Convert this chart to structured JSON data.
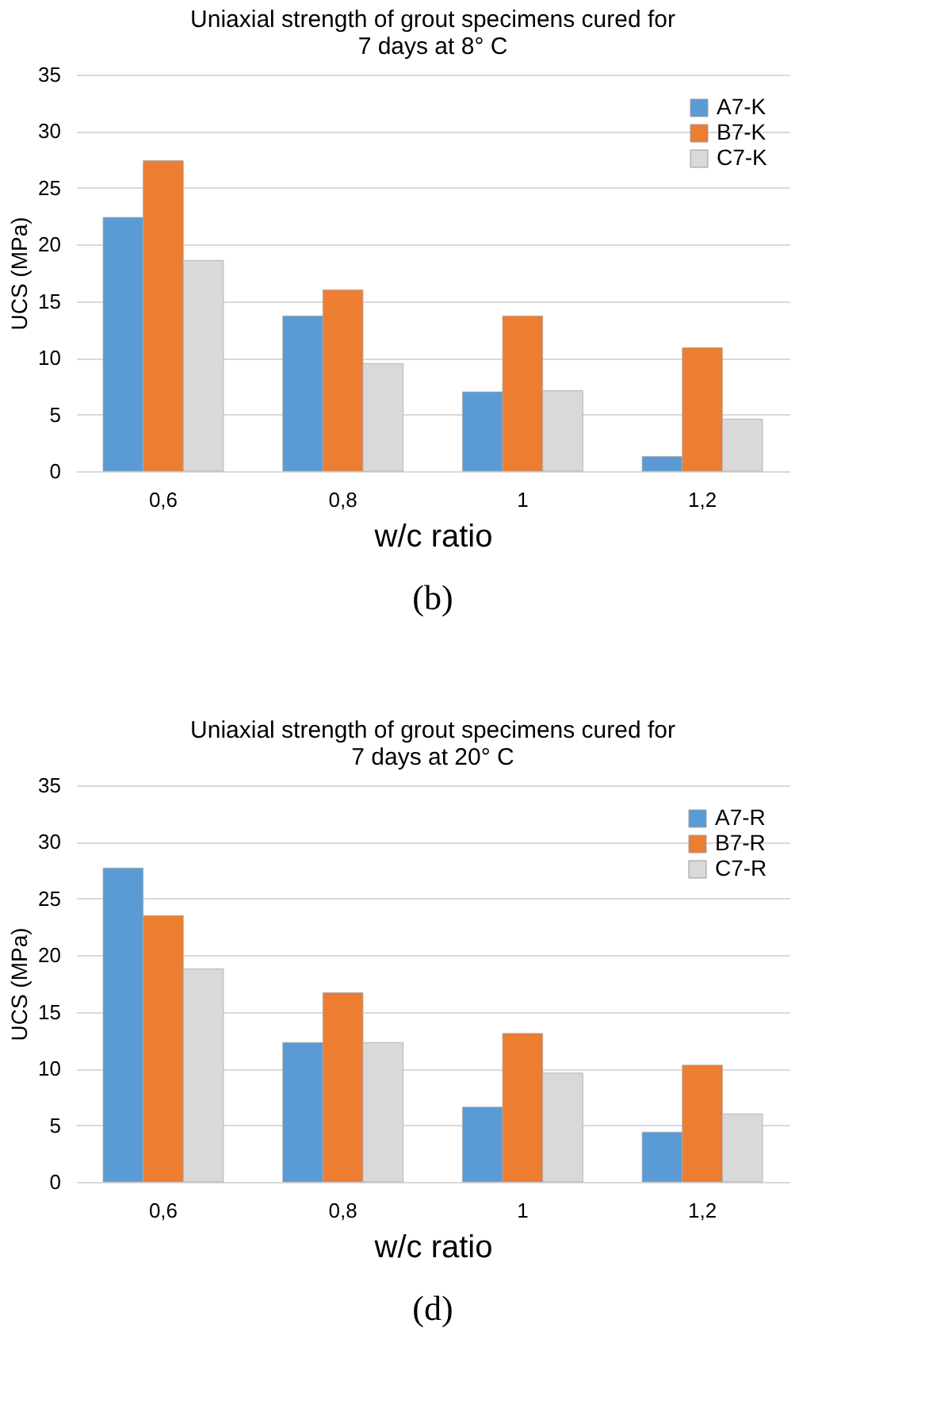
{
  "chart_data": [
    {
      "type": "bar",
      "title": "Uniaxial strength of grout specimens cured for 7 days at 8° C",
      "xlabel": "w/c ratio",
      "ylabel": "UCS (MPa)",
      "categories": [
        "0,6",
        "0,8",
        "1",
        "1,2"
      ],
      "series": [
        {
          "name": "A7-K",
          "color": "#5b9bd5",
          "values": [
            22.4,
            13.7,
            7.0,
            1.3
          ]
        },
        {
          "name": "B7-K",
          "color": "#ed7d31",
          "values": [
            27.4,
            16.0,
            13.7,
            10.9
          ]
        },
        {
          "name": "C7-K",
          "color": "#d9d9d9",
          "values": [
            18.6,
            9.5,
            7.1,
            4.6
          ]
        }
      ],
      "ylim": [
        0,
        35
      ],
      "yticks": [
        0,
        5,
        10,
        15,
        20,
        25,
        30,
        35
      ],
      "grid": "y",
      "legend": "top right",
      "annotations": [
        "(b)"
      ]
    },
    {
      "type": "bar",
      "title": "Uniaxial strength of grout specimens cured for 7 days at 20° C",
      "xlabel": "w/c ratio",
      "ylabel": "UCS (MPa)",
      "categories": [
        "0,6",
        "0,8",
        "1",
        "1,2"
      ],
      "series": [
        {
          "name": "A7-R",
          "color": "#5b9bd5",
          "values": [
            27.7,
            12.3,
            6.6,
            4.4
          ]
        },
        {
          "name": "B7-R",
          "color": "#ed7d31",
          "values": [
            23.5,
            16.7,
            13.1,
            10.3
          ]
        },
        {
          "name": "C7-R",
          "color": "#d9d9d9",
          "values": [
            18.8,
            12.3,
            9.6,
            6.0
          ]
        }
      ],
      "ylim": [
        0,
        35
      ],
      "yticks": [
        0,
        5,
        10,
        15,
        20,
        25,
        30,
        35
      ],
      "grid": "y",
      "legend": "top right",
      "annotations": [
        "(d)"
      ]
    }
  ]
}
